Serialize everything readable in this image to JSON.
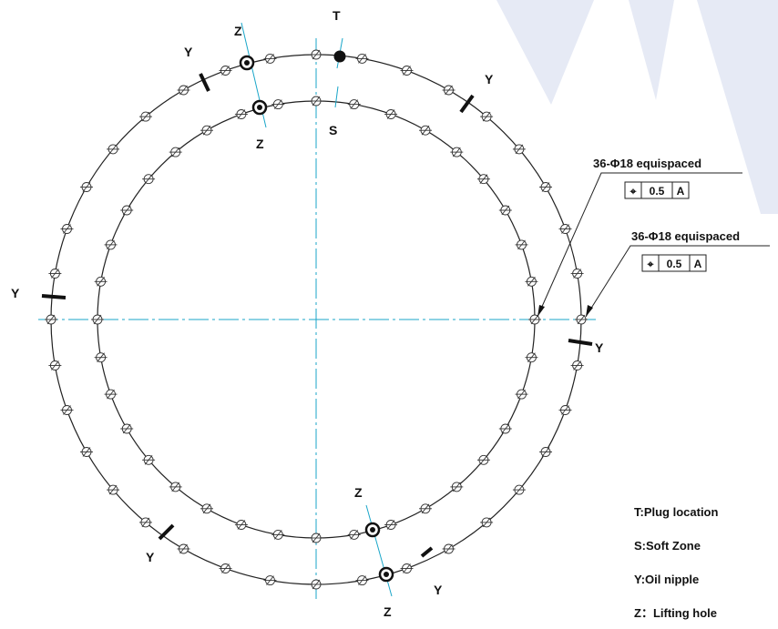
{
  "labels": {
    "plug": "T",
    "soft_zone": "S",
    "oil_nipple": "Y",
    "lifting_hole": "Z"
  },
  "callouts": [
    {
      "text": "36-Φ18  equispaced",
      "tolerance_symbol": "⌖",
      "tolerance_value": "0.5",
      "datum": "A"
    },
    {
      "text": "36-Φ18  equispaced",
      "tolerance_symbol": "⌖",
      "tolerance_value": "0.5",
      "datum": "A"
    }
  ],
  "legend": [
    {
      "text": "T:Plug  location"
    },
    {
      "text": "S:Soft  Zone"
    },
    {
      "text": "Y:Oil  nipple"
    },
    {
      "text": "Z：Lifting  hole"
    }
  ],
  "watermark_color": "#dde3f2",
  "centerline_color": "#1aa6c9",
  "holes_per_ring": 36
}
